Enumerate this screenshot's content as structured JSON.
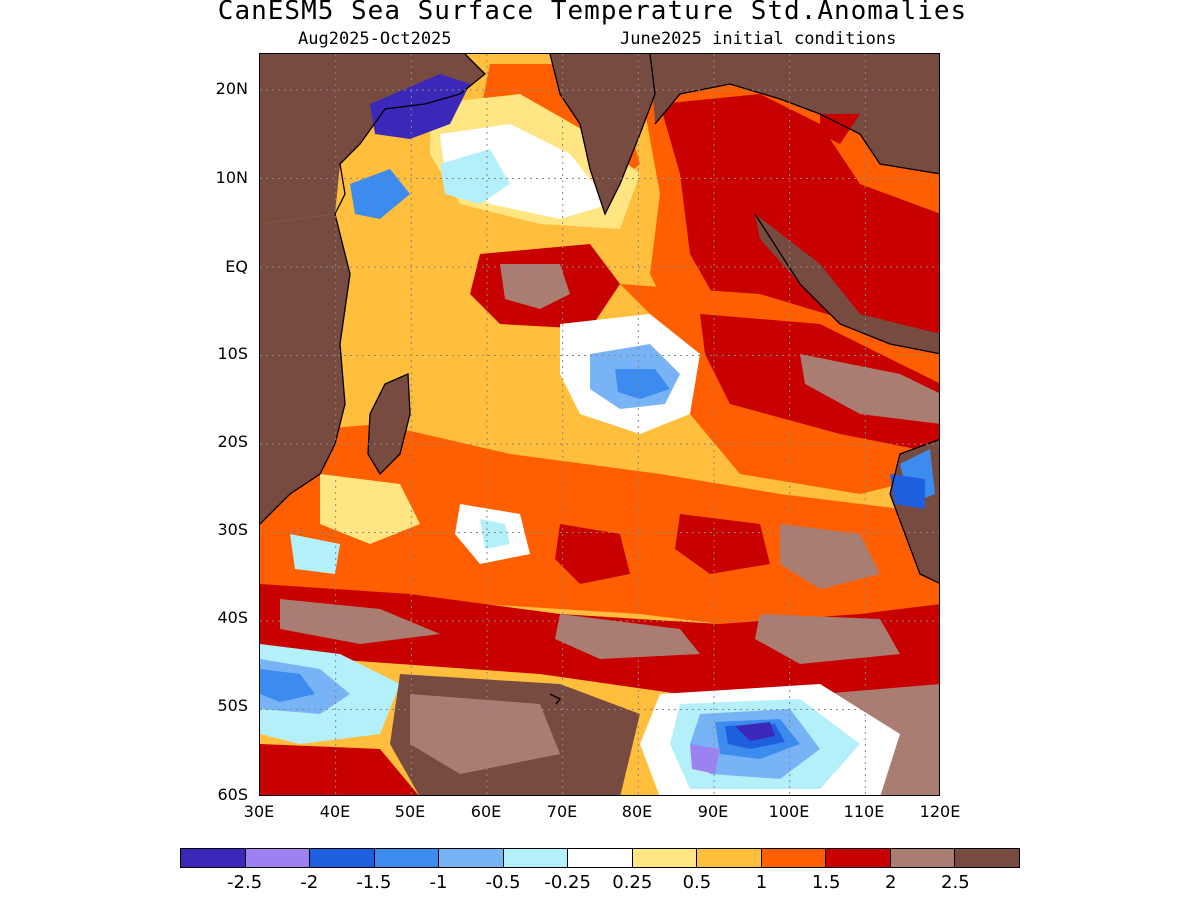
{
  "title": "CanESM5 Sea Surface Temperature Std.Anomalies",
  "subtitle_left": "Aug2025-Oct2025",
  "subtitle_right": "June2025 initial conditions",
  "lat_labels": [
    "20N",
    "10N",
    "EQ",
    "10S",
    "20S",
    "30S",
    "40S",
    "50S",
    "60S"
  ],
  "lon_labels": [
    "30E",
    "40E",
    "50E",
    "60E",
    "70E",
    "80E",
    "90E",
    "100E",
    "110E",
    "120E"
  ],
  "colorbar": {
    "colors": [
      "#3b27b8",
      "#9b82f0",
      "#1e5fe0",
      "#3c8cf0",
      "#78b4f5",
      "#b4f0fa",
      "#ffffff",
      "#ffe682",
      "#ffbe3c",
      "#ff5f00",
      "#c80000",
      "#aa7d73",
      "#784b41"
    ],
    "labels": [
      "-2.5",
      "-2",
      "-1.5",
      "-1",
      "-0.5",
      "-0.25",
      "0.25",
      "0.5",
      "1",
      "1.5",
      "2",
      "2.5"
    ]
  },
  "legend_colors": {
    "land": "#784b41",
    "ocean_base": "#ffbe3c",
    "warm_moderate": "#ff5f00",
    "warm_strong": "#c80000",
    "warm_extreme": "#aa7d73",
    "cool_mild": "#b4f0fa",
    "cool_moderate": "#78b4f5",
    "cool_strong": "#3c8cf0",
    "cool_stronger": "#1e5fe0",
    "cool_extreme": "#3b27b8",
    "coast": "#000000"
  }
}
